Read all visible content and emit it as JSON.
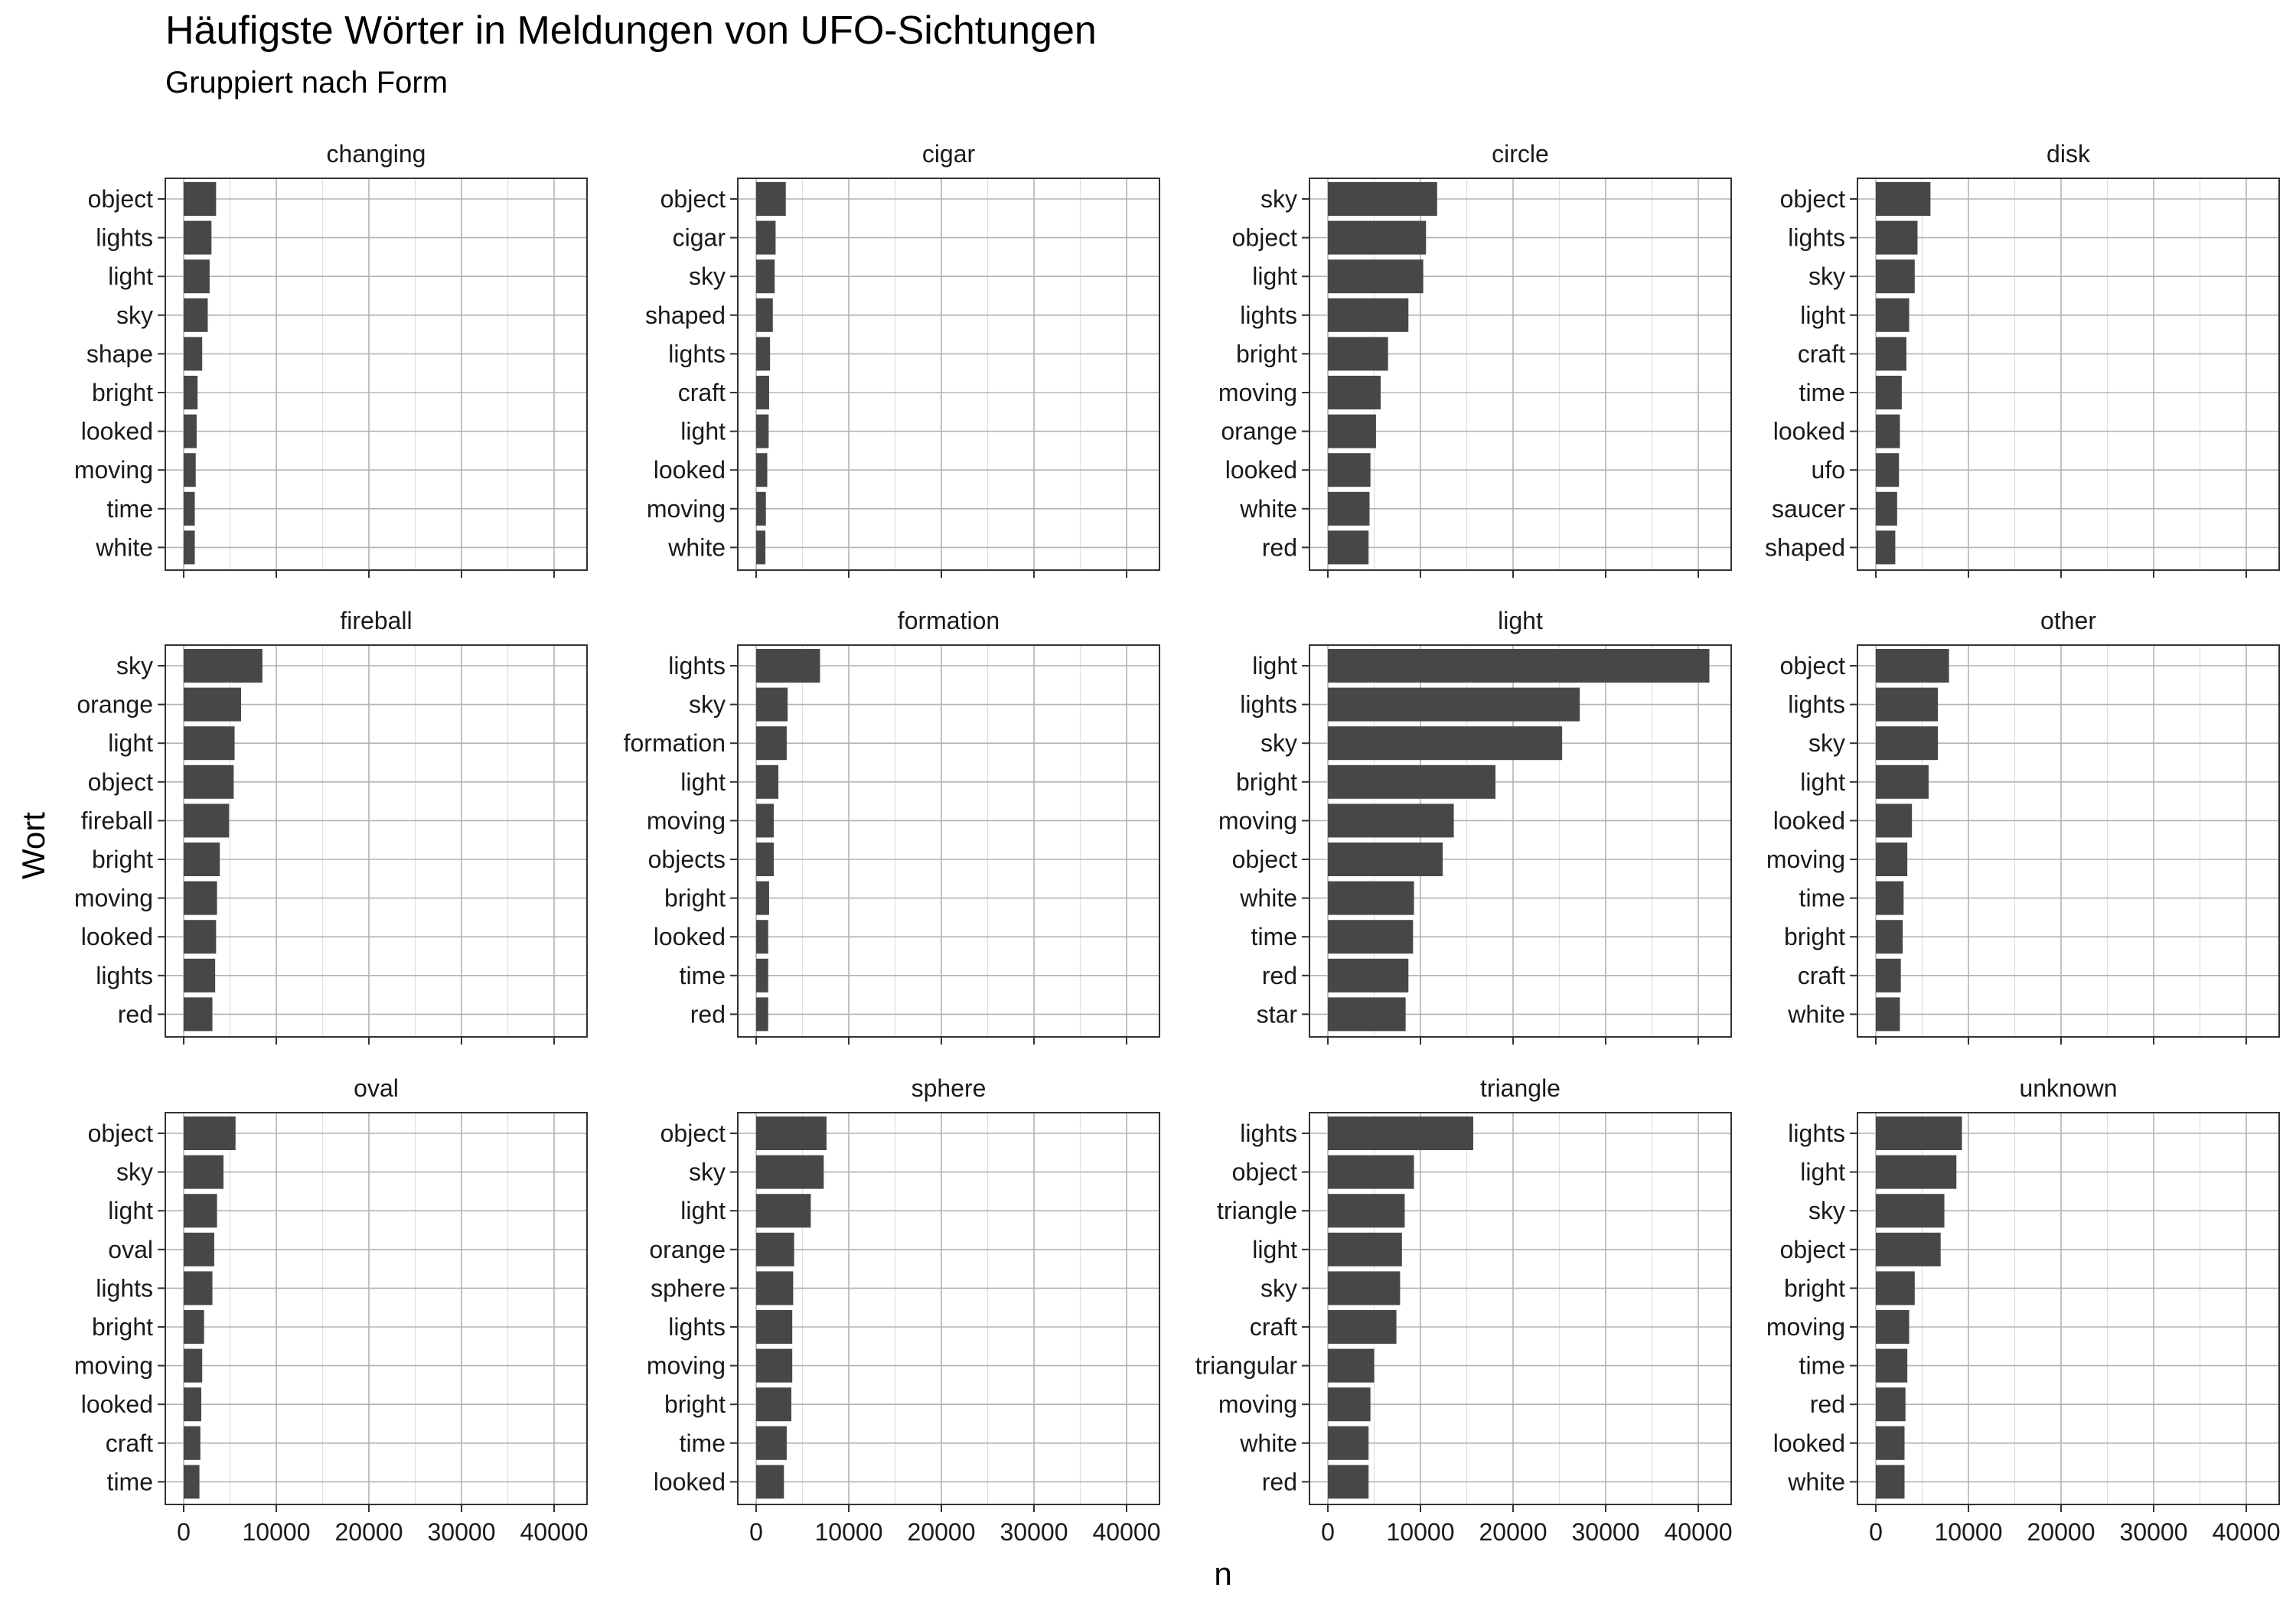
{
  "chart_data": {
    "type": "bar",
    "title": "Häufigste Wörter in Meldungen von UFO-Sichtungen",
    "subtitle": "Gruppiert nach Form",
    "xlabel": "n",
    "ylabel": "Wort",
    "xlim": [
      0,
      43000
    ],
    "x_ticks": [
      0,
      10000,
      20000,
      30000,
      40000
    ],
    "grid": true,
    "orientation": "horizontal",
    "colors": {
      "bar": "#474747",
      "panel_border": "#333333",
      "grid_major": "#b3b3b3",
      "grid_minor": "#dedede"
    },
    "panels": [
      {
        "name": "changing",
        "words": [
          "object",
          "lights",
          "light",
          "sky",
          "shape",
          "bright",
          "looked",
          "moving",
          "time",
          "white"
        ],
        "values": [
          3500,
          3000,
          2800,
          2600,
          2000,
          1500,
          1400,
          1300,
          1200,
          1200
        ]
      },
      {
        "name": "cigar",
        "words": [
          "object",
          "cigar",
          "sky",
          "shaped",
          "lights",
          "craft",
          "light",
          "looked",
          "moving",
          "white"
        ],
        "values": [
          3200,
          2100,
          2000,
          1800,
          1500,
          1400,
          1350,
          1200,
          1050,
          1000
        ]
      },
      {
        "name": "circle",
        "words": [
          "sky",
          "object",
          "light",
          "lights",
          "bright",
          "moving",
          "orange",
          "looked",
          "white",
          "red"
        ],
        "values": [
          11800,
          10600,
          10300,
          8700,
          6500,
          5700,
          5200,
          4600,
          4500,
          4400
        ]
      },
      {
        "name": "disk",
        "words": [
          "object",
          "lights",
          "sky",
          "light",
          "craft",
          "time",
          "looked",
          "ufo",
          "saucer",
          "shaped"
        ],
        "values": [
          5900,
          4500,
          4200,
          3600,
          3300,
          2800,
          2600,
          2500,
          2300,
          2100
        ]
      },
      {
        "name": "fireball",
        "words": [
          "sky",
          "orange",
          "light",
          "object",
          "fireball",
          "bright",
          "moving",
          "looked",
          "lights",
          "red"
        ],
        "values": [
          8500,
          6200,
          5500,
          5400,
          4900,
          3900,
          3600,
          3500,
          3400,
          3100
        ]
      },
      {
        "name": "formation",
        "words": [
          "lights",
          "sky",
          "formation",
          "light",
          "moving",
          "objects",
          "bright",
          "looked",
          "time",
          "red"
        ],
        "values": [
          6900,
          3400,
          3300,
          2400,
          1900,
          1900,
          1400,
          1300,
          1300,
          1300
        ]
      },
      {
        "name": "light",
        "words": [
          "light",
          "lights",
          "sky",
          "bright",
          "moving",
          "object",
          "white",
          "time",
          "red",
          "star"
        ],
        "values": [
          41200,
          27200,
          25300,
          18100,
          13600,
          12400,
          9300,
          9200,
          8700,
          8400
        ]
      },
      {
        "name": "other",
        "words": [
          "object",
          "lights",
          "sky",
          "light",
          "looked",
          "moving",
          "time",
          "bright",
          "craft",
          "white"
        ],
        "values": [
          7900,
          6700,
          6700,
          5700,
          3900,
          3400,
          3000,
          2900,
          2700,
          2600
        ]
      },
      {
        "name": "oval",
        "words": [
          "object",
          "sky",
          "light",
          "oval",
          "lights",
          "bright",
          "moving",
          "looked",
          "craft",
          "time"
        ],
        "values": [
          5600,
          4300,
          3600,
          3300,
          3100,
          2200,
          2000,
          1900,
          1800,
          1700
        ]
      },
      {
        "name": "sphere",
        "words": [
          "object",
          "sky",
          "light",
          "orange",
          "sphere",
          "lights",
          "moving",
          "bright",
          "time",
          "looked"
        ],
        "values": [
          7600,
          7300,
          5900,
          4100,
          4000,
          3900,
          3900,
          3800,
          3300,
          3000
        ]
      },
      {
        "name": "triangle",
        "words": [
          "lights",
          "object",
          "triangle",
          "light",
          "sky",
          "craft",
          "triangular",
          "moving",
          "white",
          "red"
        ],
        "values": [
          15700,
          9300,
          8300,
          8000,
          7800,
          7400,
          5000,
          4600,
          4400,
          4400
        ]
      },
      {
        "name": "unknown",
        "words": [
          "lights",
          "light",
          "sky",
          "object",
          "bright",
          "moving",
          "time",
          "red",
          "looked",
          "white"
        ],
        "values": [
          9300,
          8700,
          7400,
          7000,
          4200,
          3600,
          3400,
          3200,
          3100,
          3100
        ]
      }
    ]
  }
}
